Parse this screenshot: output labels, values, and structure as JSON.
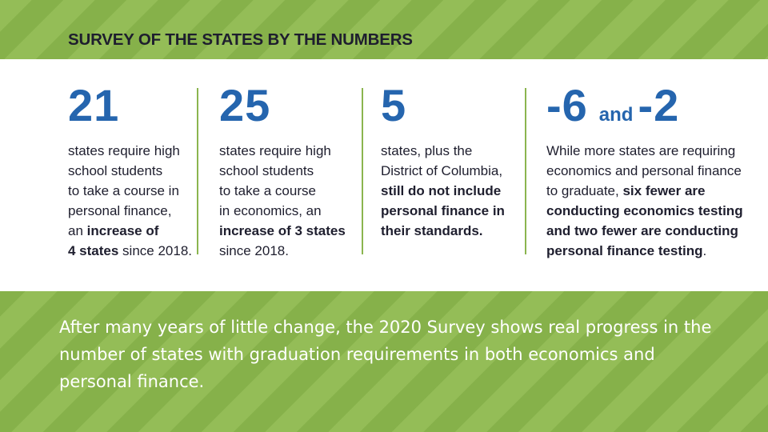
{
  "header": {
    "title": "SURVEY OF THE STATES BY THE NUMBERS"
  },
  "stats": [
    {
      "number": "21",
      "lines": [
        [
          {
            "text": "states require high",
            "bold": false
          }
        ],
        [
          {
            "text": "school students",
            "bold": false
          }
        ],
        [
          {
            "text": "to take a course in",
            "bold": false
          }
        ],
        [
          {
            "text": "personal finance,",
            "bold": false
          }
        ],
        [
          {
            "text": "an ",
            "bold": false
          },
          {
            "text": "increase of",
            "bold": true
          }
        ],
        [
          {
            "text": "4 states",
            "bold": true
          },
          {
            "text": " since 2018.",
            "bold": false
          }
        ]
      ]
    },
    {
      "number": "25",
      "lines": [
        [
          {
            "text": "states require high",
            "bold": false
          }
        ],
        [
          {
            "text": "school students",
            "bold": false
          }
        ],
        [
          {
            "text": "to take a course",
            "bold": false
          }
        ],
        [
          {
            "text": "in economics, an",
            "bold": false
          }
        ],
        [
          {
            "text": "increase of 3 states",
            "bold": true
          }
        ],
        [
          {
            "text": "since 2018.",
            "bold": false
          }
        ]
      ]
    },
    {
      "number": "5",
      "lines": [
        [
          {
            "text": "states, plus the",
            "bold": false
          }
        ],
        [
          {
            "text": "District of Columbia,",
            "bold": false
          }
        ],
        [
          {
            "text": "still do not include",
            "bold": true
          }
        ],
        [
          {
            "text": "personal finance in",
            "bold": true
          }
        ],
        [
          {
            "text": "their standards.",
            "bold": true
          }
        ]
      ]
    },
    {
      "number_a": "-6",
      "connector": "and",
      "number_b": "-2",
      "lines": [
        [
          {
            "text": "While more states are requiring",
            "bold": false
          }
        ],
        [
          {
            "text": "economics and personal finance",
            "bold": false
          }
        ],
        [
          {
            "text": "to graduate, ",
            "bold": false
          },
          {
            "text": "six fewer are",
            "bold": true
          }
        ],
        [
          {
            "text": "conducting economics testing",
            "bold": true
          }
        ],
        [
          {
            "text": "and two fewer are conducting",
            "bold": true
          }
        ],
        [
          {
            "text": "personal finance testing",
            "bold": true
          },
          {
            "text": ".",
            "bold": false
          }
        ]
      ]
    }
  ],
  "caption": "After many years of little change, the 2020 Survey shows real progress in the number of states with graduation requirements in both economics and personal finance.",
  "colors": {
    "accent_blue": "#2565ae",
    "green": "#8bb54f",
    "text_dark": "#1e1e2e"
  }
}
